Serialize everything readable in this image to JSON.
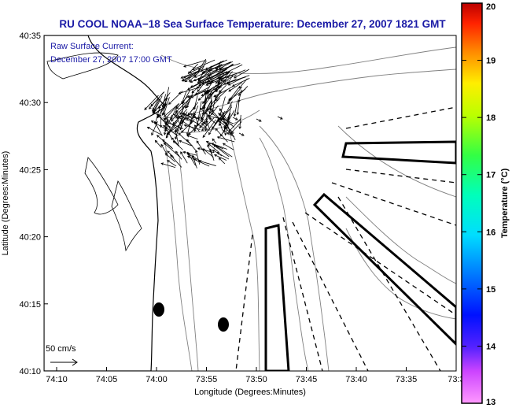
{
  "title": "RU COOL  NOAA−18  Sea Surface Temperature:  December 27, 2007 1821 GMT",
  "current_label": {
    "line1": "Raw Surface Current:",
    "line2": "December 27, 2007 17:00 GMT"
  },
  "scale_arrow_label": "50 cm/s",
  "axes": {
    "xlabel": "Longitude (Degrees:Minutes)",
    "ylabel": "Latitude (Degrees:Minutes)",
    "x_ticks": [
      "74:10",
      "74:05",
      "74:00",
      "73:55",
      "73:50",
      "73:45",
      "73:40",
      "73:35",
      "73:3"
    ],
    "y_ticks": [
      "40:35",
      "40:30",
      "40:25",
      "40:20",
      "40:15",
      "40:10"
    ]
  },
  "colorbar": {
    "label": "Temperature (°C)",
    "ticks": [
      "20",
      "19",
      "18",
      "17",
      "16",
      "15",
      "14",
      "13"
    ],
    "min": 13,
    "max": 20
  },
  "colors": {
    "title": "#1a1aa6",
    "land": "#ffffff",
    "sea": "#ffffff",
    "bathymetry": "#808080",
    "coastline": "#000000"
  },
  "features": {
    "vectors": "raw surface current arrows",
    "regions": "dashed shipping lane lines and solid outlined zones",
    "markers": "two black oval markers"
  }
}
